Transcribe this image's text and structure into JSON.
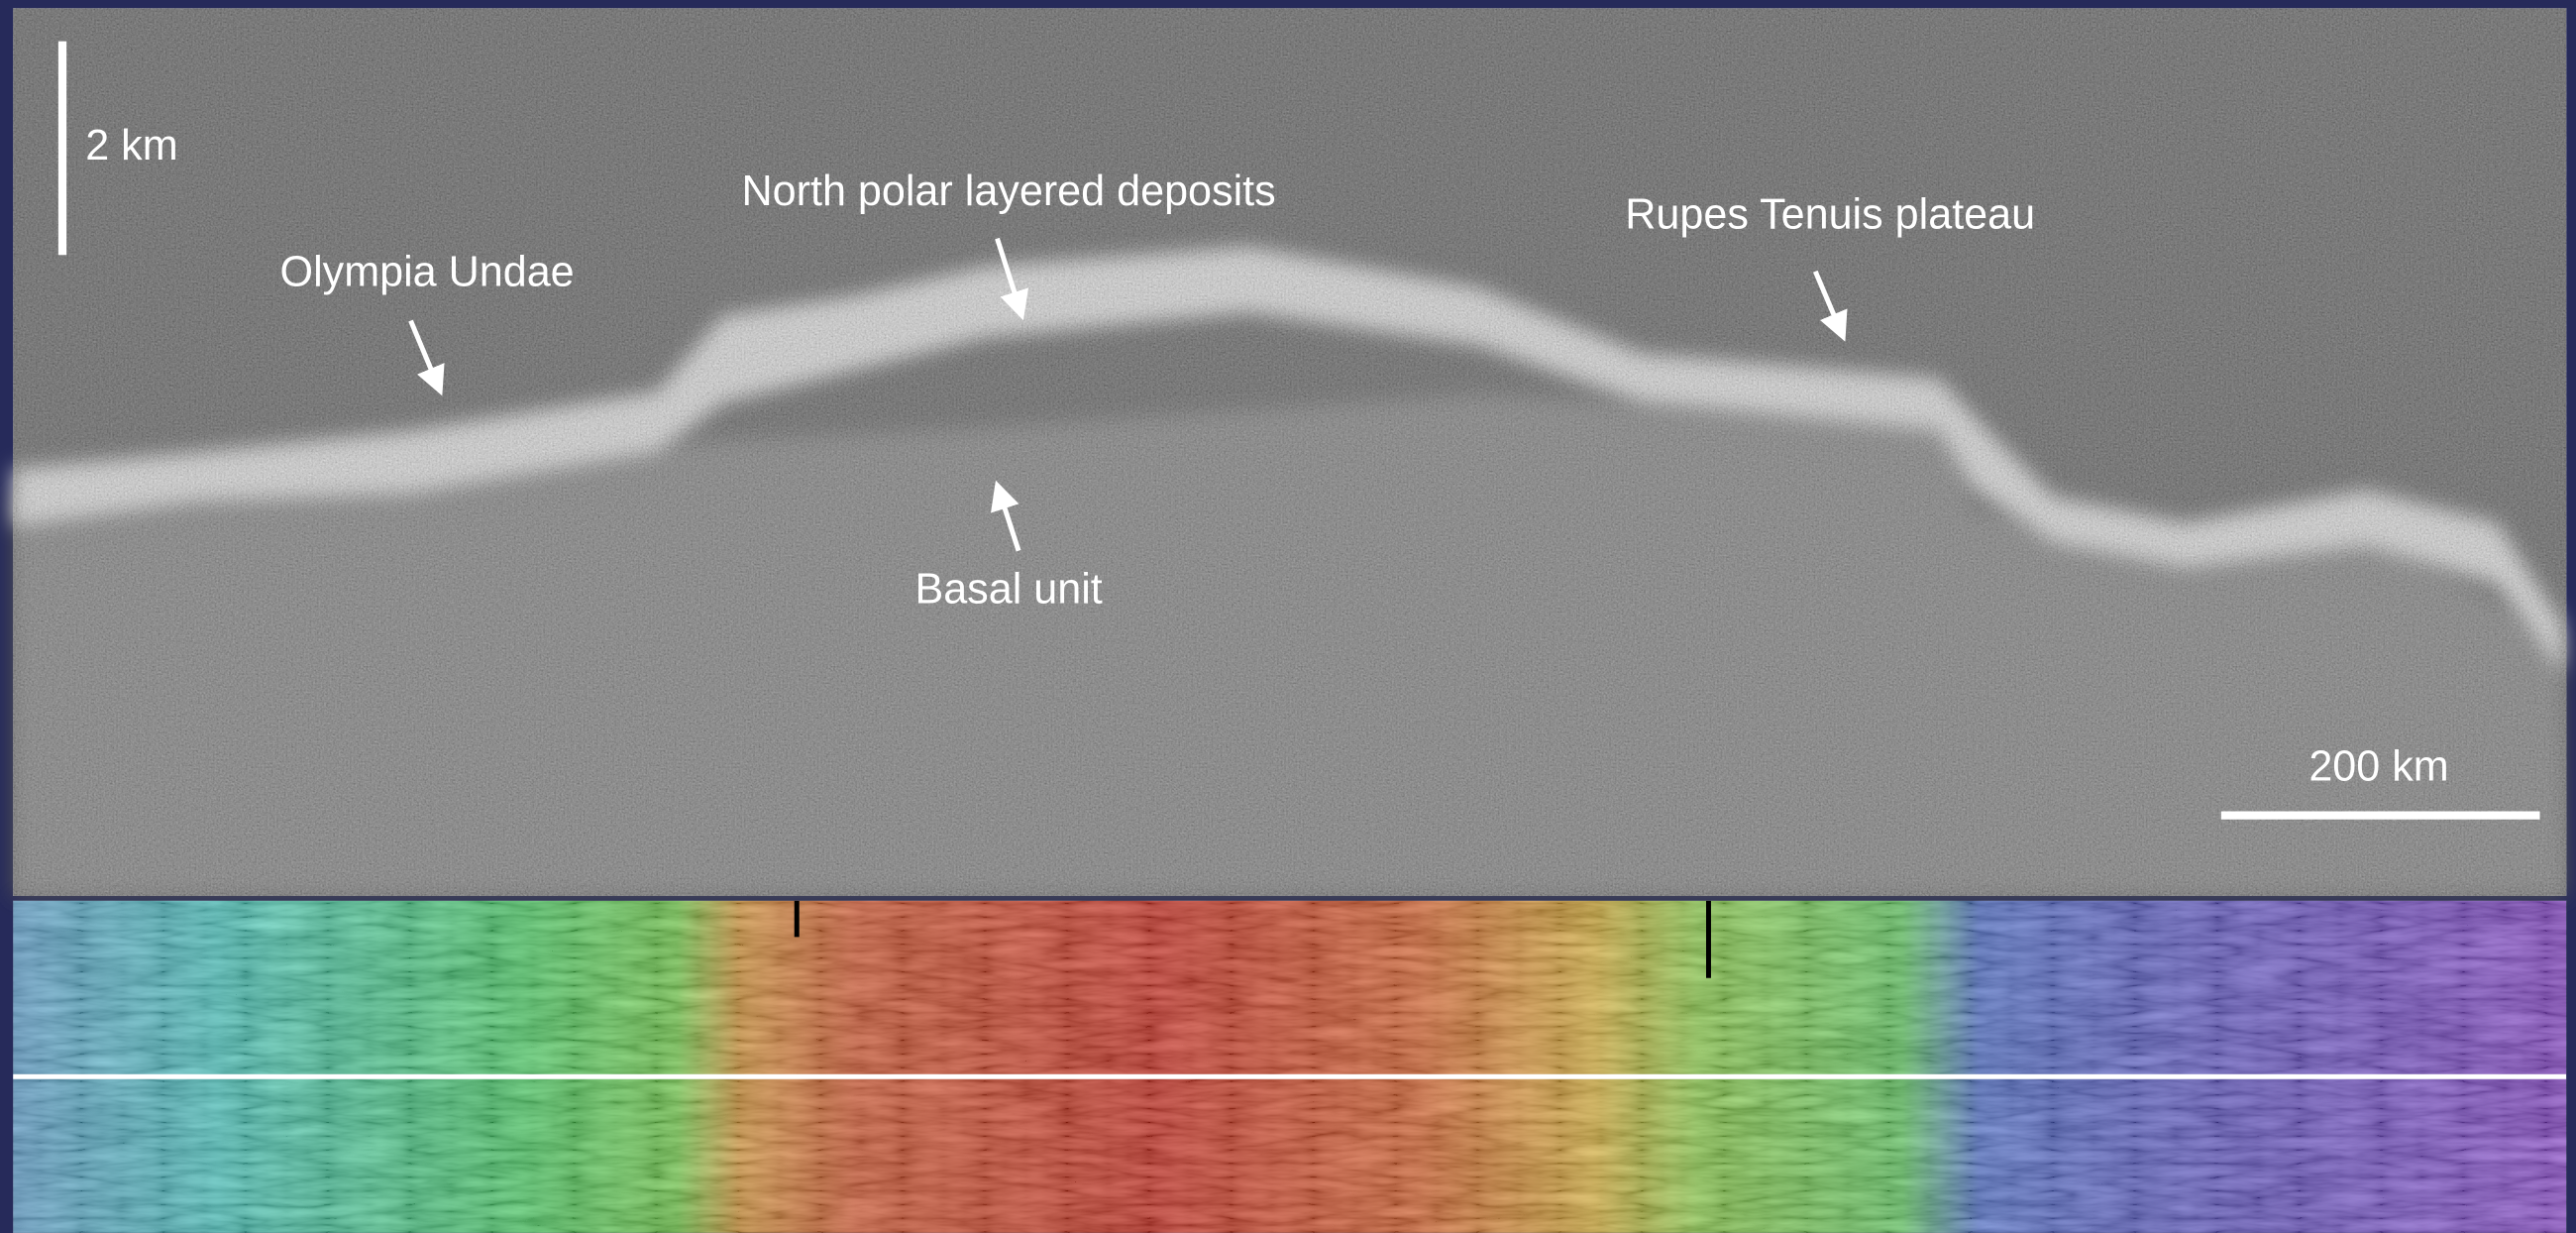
{
  "radargram": {
    "vertical_scale": "2 km",
    "horizontal_scale": "200 km",
    "annotations": [
      "North polar layered deposits",
      "Olympia Undae",
      "Rupes Tenuis plateau",
      "Basal unit"
    ]
  }
}
